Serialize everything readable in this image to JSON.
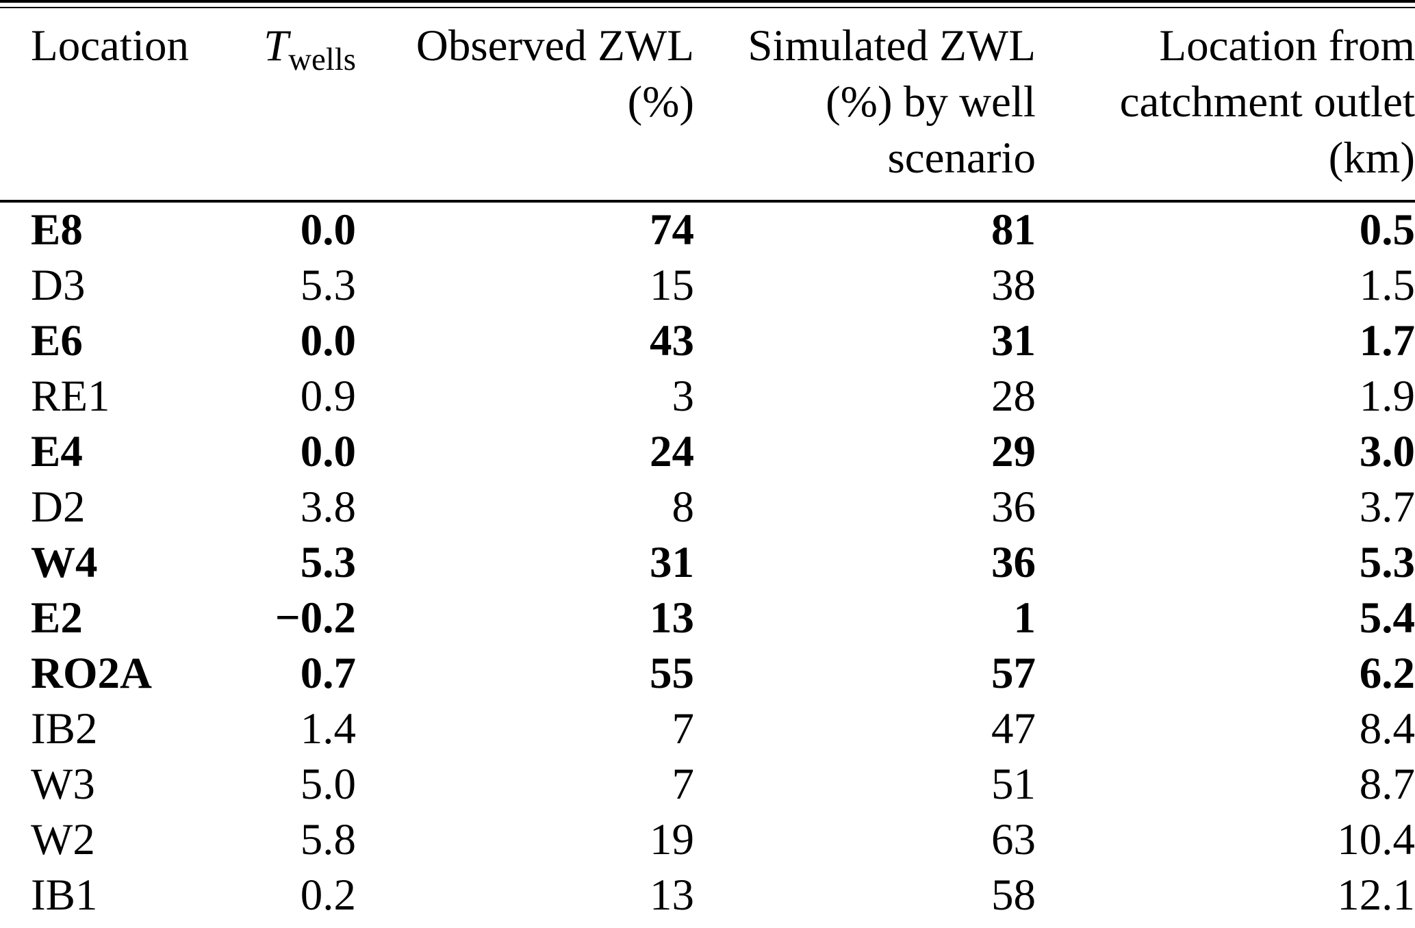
{
  "colors": {
    "background": "#ffffff",
    "text": "#000000",
    "rule": "#000000"
  },
  "table": {
    "headers": [
      {
        "text": "Location"
      },
      {
        "symbol": "T",
        "subscript": "wells"
      },
      {
        "lines": [
          "Observed ZWL",
          "(%)"
        ]
      },
      {
        "lines": [
          "Simulated ZWL",
          "(%) by well",
          "scenario"
        ]
      },
      {
        "lines": [
          "Location from",
          "catchment outlet",
          "(km)"
        ]
      }
    ],
    "rows": [
      {
        "style": "bold",
        "cells": [
          "E8",
          "0.0",
          "74",
          "81",
          "0.5"
        ]
      },
      {
        "style": "",
        "cells": [
          "D3",
          "5.3",
          "15",
          "38",
          "1.5"
        ]
      },
      {
        "style": "bold",
        "cells": [
          "E6",
          "0.0",
          "43",
          "31",
          "1.7"
        ]
      },
      {
        "style": "",
        "cells": [
          "RE1",
          "0.9",
          "3",
          "28",
          "1.9"
        ]
      },
      {
        "style": "bold",
        "cells": [
          "E4",
          "0.0",
          "24",
          "29",
          "3.0"
        ]
      },
      {
        "style": "",
        "cells": [
          "D2",
          "3.8",
          "8",
          "36",
          "3.7"
        ]
      },
      {
        "style": "bold",
        "cells": [
          "W4",
          "5.3",
          "31",
          "36",
          "5.3"
        ]
      },
      {
        "style": "bold",
        "cells": [
          "E2",
          "−0.2",
          "13",
          "1",
          "5.4"
        ]
      },
      {
        "style": "bold",
        "cells": [
          "RO2A",
          "0.7",
          "55",
          "57",
          "6.2"
        ]
      },
      {
        "style": "",
        "cells": [
          "IB2",
          "1.4",
          "7",
          "47",
          "8.4"
        ]
      },
      {
        "style": "",
        "cells": [
          "W3",
          "5.0",
          "7",
          "51",
          "8.7"
        ]
      },
      {
        "style": "",
        "cells": [
          "W2",
          "5.8",
          "19",
          "63",
          "10.4"
        ]
      },
      {
        "style": "",
        "cells": [
          "IB1",
          "0.2",
          "13",
          "58",
          "12.1"
        ]
      }
    ]
  }
}
